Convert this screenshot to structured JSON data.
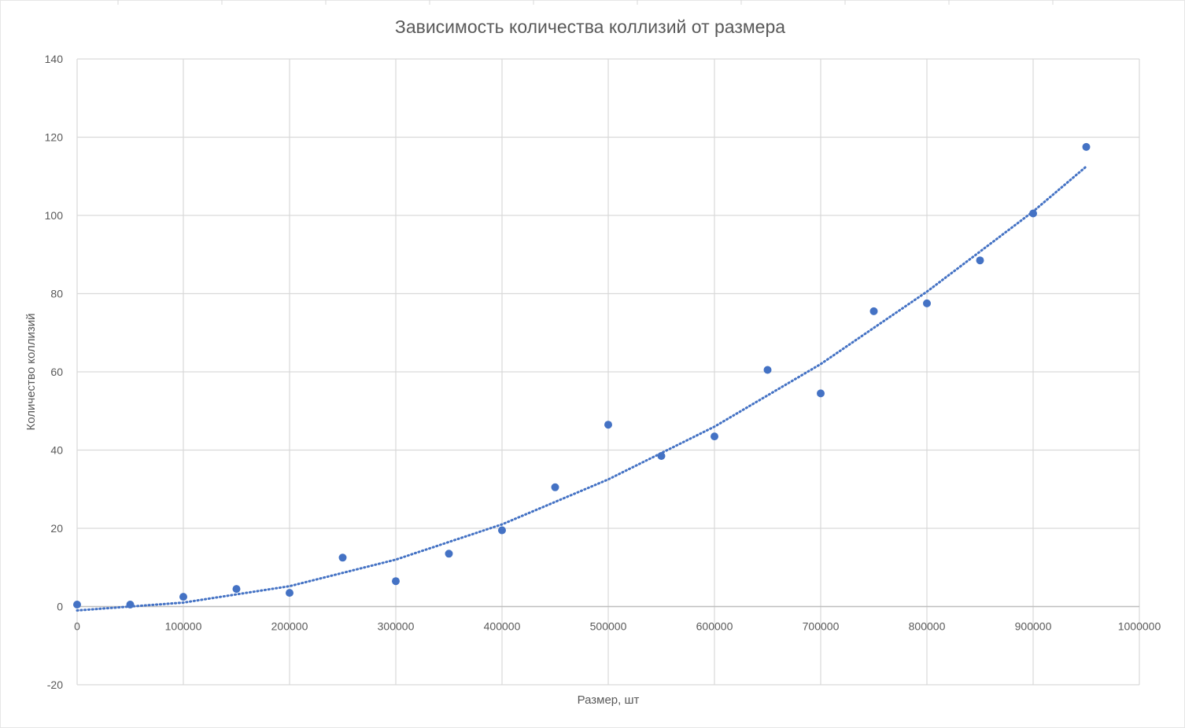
{
  "chart_data": {
    "type": "scatter",
    "title": "Зависимость количества коллизий от размера",
    "xlabel": "Размер, шт",
    "ylabel": "Количество коллизий",
    "xlim": [
      0,
      1000000
    ],
    "ylim": [
      -20,
      140
    ],
    "x_ticks": [
      0,
      100000,
      200000,
      300000,
      400000,
      500000,
      600000,
      700000,
      800000,
      900000,
      1000000
    ],
    "y_ticks": [
      -20,
      0,
      20,
      40,
      60,
      80,
      100,
      120,
      140
    ],
    "grid": true,
    "legend": "none",
    "colors": {
      "points": "#4472c4",
      "trendline": "#4472c4",
      "grid": "#d9d9d9",
      "text": "#595959"
    },
    "series": [
      {
        "x": [
          0,
          50000,
          100000,
          150000,
          200000,
          250000,
          300000,
          350000,
          400000,
          450000,
          500000,
          550000,
          600000,
          650000,
          700000,
          750000,
          800000,
          850000,
          900000,
          950000
        ],
        "values": [
          0.5,
          0.5,
          2.5,
          4.5,
          3.5,
          12.5,
          6.5,
          13.5,
          19.5,
          30.5,
          46.5,
          38.5,
          43.5,
          60.5,
          54.5,
          75.5,
          77.5,
          88.5,
          100.5,
          117.5
        ]
      }
    ],
    "trendline": {
      "type": "polynomial",
      "style": "dotted",
      "x": [
        0,
        100000,
        200000,
        300000,
        400000,
        500000,
        600000,
        700000,
        800000,
        900000,
        950000
      ],
      "values": [
        -1,
        1,
        5.2,
        12,
        21,
        32.5,
        46,
        62,
        80.5,
        101,
        112.5
      ]
    }
  }
}
